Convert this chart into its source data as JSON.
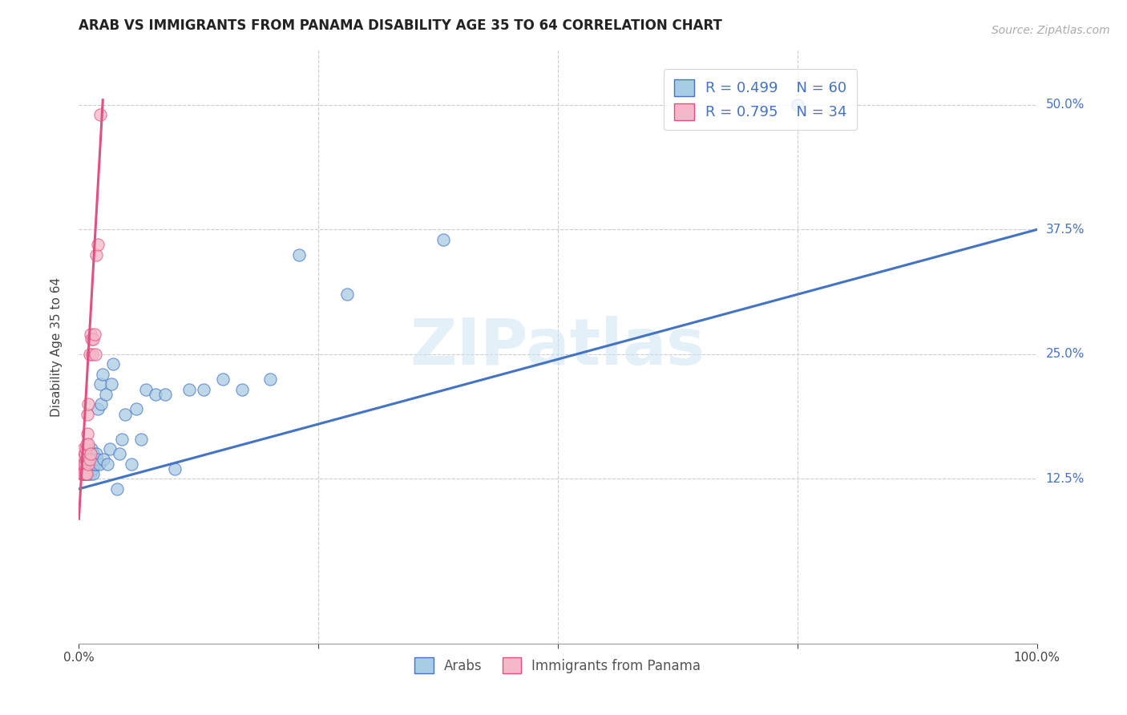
{
  "title": "ARAB VS IMMIGRANTS FROM PANAMA DISABILITY AGE 35 TO 64 CORRELATION CHART",
  "source": "Source: ZipAtlas.com",
  "ylabel": "Disability Age 35 to 64",
  "xlim": [
    0.0,
    1.0
  ],
  "ylim": [
    -0.04,
    0.555
  ],
  "ytick_positions": [
    0.125,
    0.25,
    0.375,
    0.5
  ],
  "ytick_labels": [
    "12.5%",
    "25.0%",
    "37.5%",
    "50.0%"
  ],
  "watermark": "ZIPatlas",
  "legend_r1": "R = 0.499",
  "legend_n1": "N = 60",
  "legend_r2": "R = 0.795",
  "legend_n2": "N = 34",
  "color_arab": "#a8cce4",
  "color_panama": "#f4b8c8",
  "color_line_arab": "#4472c4",
  "color_line_panama": "#e05080",
  "arab_scatter_x": [
    0.003,
    0.004,
    0.005,
    0.005,
    0.006,
    0.006,
    0.007,
    0.007,
    0.007,
    0.008,
    0.008,
    0.009,
    0.009,
    0.01,
    0.01,
    0.01,
    0.011,
    0.011,
    0.012,
    0.012,
    0.013,
    0.013,
    0.014,
    0.015,
    0.015,
    0.016,
    0.017,
    0.018,
    0.019,
    0.02,
    0.021,
    0.022,
    0.023,
    0.025,
    0.026,
    0.028,
    0.03,
    0.032,
    0.034,
    0.036,
    0.04,
    0.042,
    0.045,
    0.048,
    0.055,
    0.06,
    0.065,
    0.07,
    0.08,
    0.09,
    0.1,
    0.115,
    0.13,
    0.15,
    0.17,
    0.2,
    0.23,
    0.28,
    0.38,
    0.75
  ],
  "arab_scatter_y": [
    0.14,
    0.135,
    0.13,
    0.145,
    0.13,
    0.145,
    0.13,
    0.14,
    0.15,
    0.135,
    0.145,
    0.13,
    0.14,
    0.13,
    0.14,
    0.15,
    0.135,
    0.145,
    0.13,
    0.145,
    0.14,
    0.155,
    0.135,
    0.13,
    0.15,
    0.14,
    0.14,
    0.15,
    0.145,
    0.195,
    0.14,
    0.22,
    0.2,
    0.23,
    0.145,
    0.21,
    0.14,
    0.155,
    0.22,
    0.24,
    0.115,
    0.15,
    0.165,
    0.19,
    0.14,
    0.195,
    0.165,
    0.215,
    0.21,
    0.21,
    0.135,
    0.215,
    0.215,
    0.225,
    0.215,
    0.225,
    0.35,
    0.31,
    0.365,
    0.5
  ],
  "panama_scatter_x": [
    0.002,
    0.003,
    0.003,
    0.004,
    0.004,
    0.005,
    0.005,
    0.005,
    0.006,
    0.006,
    0.006,
    0.007,
    0.007,
    0.007,
    0.008,
    0.008,
    0.008,
    0.009,
    0.009,
    0.01,
    0.01,
    0.01,
    0.011,
    0.011,
    0.012,
    0.012,
    0.013,
    0.014,
    0.015,
    0.016,
    0.017,
    0.018,
    0.02,
    0.022
  ],
  "panama_scatter_y": [
    0.135,
    0.13,
    0.145,
    0.13,
    0.145,
    0.13,
    0.14,
    0.155,
    0.13,
    0.14,
    0.15,
    0.13,
    0.145,
    0.155,
    0.13,
    0.145,
    0.16,
    0.17,
    0.19,
    0.14,
    0.16,
    0.2,
    0.145,
    0.25,
    0.15,
    0.27,
    0.265,
    0.25,
    0.265,
    0.27,
    0.25,
    0.35,
    0.36,
    0.49
  ],
  "arab_line_x_start": 0.0,
  "arab_line_x_end": 1.0,
  "arab_line_y_start": 0.115,
  "arab_line_y_end": 0.375,
  "panama_line_x_start": 0.0,
  "panama_line_x_end": 0.025,
  "panama_line_y_start": 0.085,
  "panama_line_y_end": 0.505,
  "background_color": "#ffffff",
  "grid_color": "#cccccc",
  "title_fontsize": 12,
  "label_fontsize": 11,
  "tick_fontsize": 11,
  "source_fontsize": 10
}
